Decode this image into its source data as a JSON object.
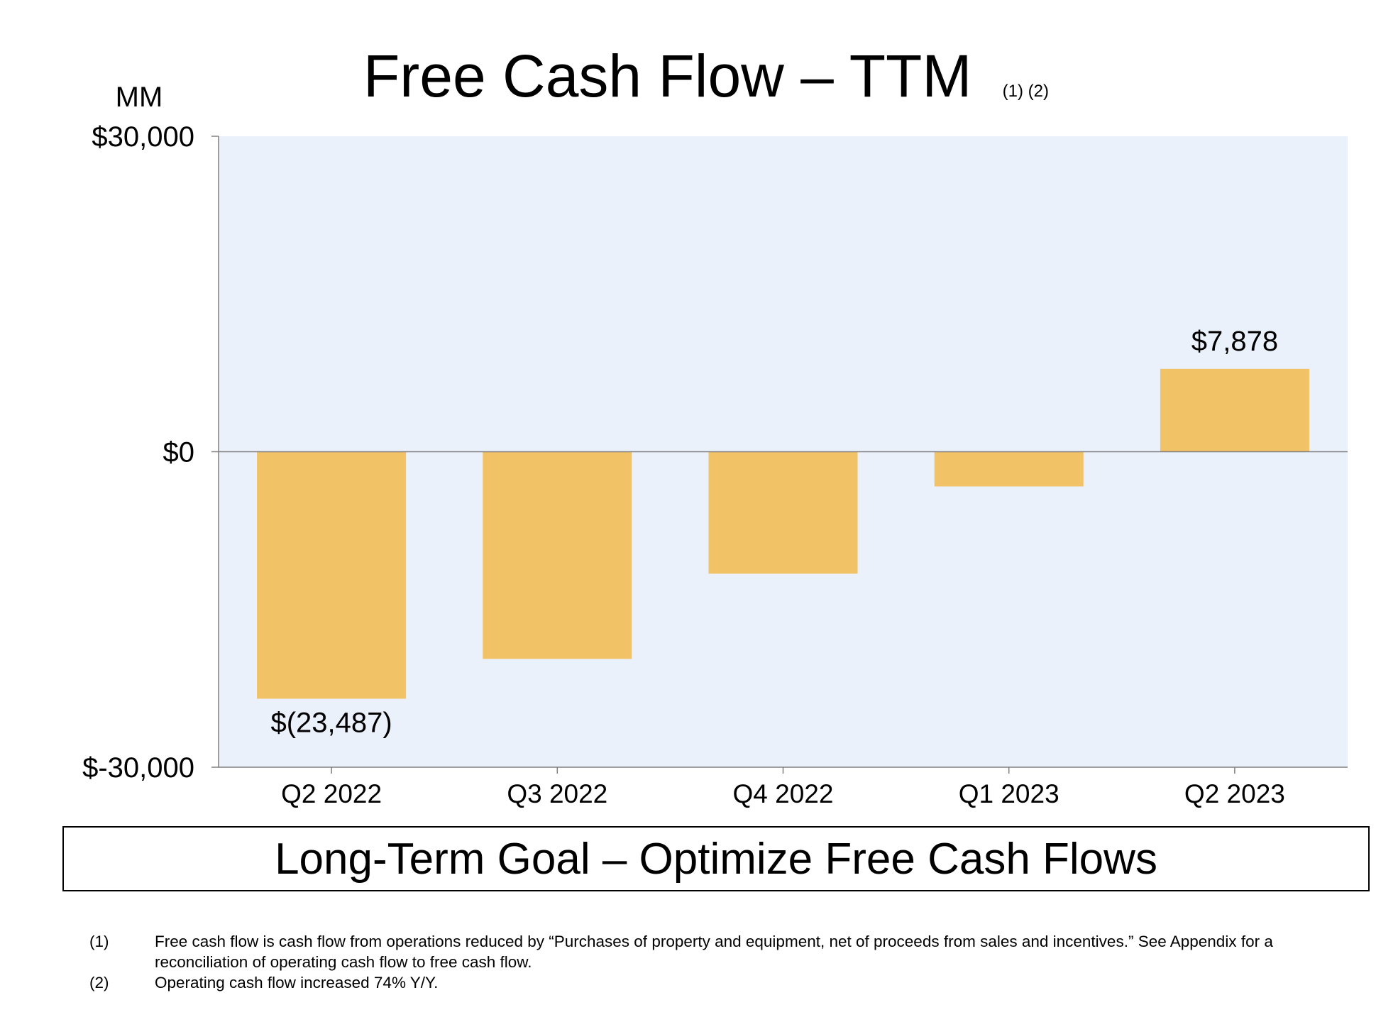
{
  "chart_data": {
    "type": "bar",
    "title": "Free Cash Flow – TTM",
    "title_superscript": "(1) (2)",
    "unit_label": "MM",
    "categories": [
      "Q2 2022",
      "Q3 2022",
      "Q4 2022",
      "Q1 2023",
      "Q2 2023"
    ],
    "values": [
      -23487,
      -19700,
      -11600,
      -3300,
      7878
    ],
    "data_labels": [
      "$(23,487)",
      "",
      "",
      "",
      "$7,878"
    ],
    "ylim": [
      -30000,
      30000
    ],
    "yticks": [
      {
        "value": 30000,
        "label": "$30,000"
      },
      {
        "value": 0,
        "label": "$0"
      },
      {
        "value": -30000,
        "label": "$-30,000"
      }
    ],
    "xlabel": "",
    "ylabel": "",
    "grid": false,
    "colors": {
      "bar": "#F2C267",
      "plot_background": "#EBF1FB",
      "axis": "#7F7F7F",
      "text": "#000000"
    }
  },
  "goal": "Long-Term Goal – Optimize Free Cash Flows",
  "footnotes": [
    {
      "num": "(1)",
      "text": "Free cash flow is cash flow from operations reduced by “Purchases of property and equipment, net of proceeds from sales and incentives.” See Appendix for a reconciliation of operating cash flow to free cash flow."
    },
    {
      "num": "(2)",
      "text": "Operating cash flow increased 74% Y/Y."
    }
  ]
}
